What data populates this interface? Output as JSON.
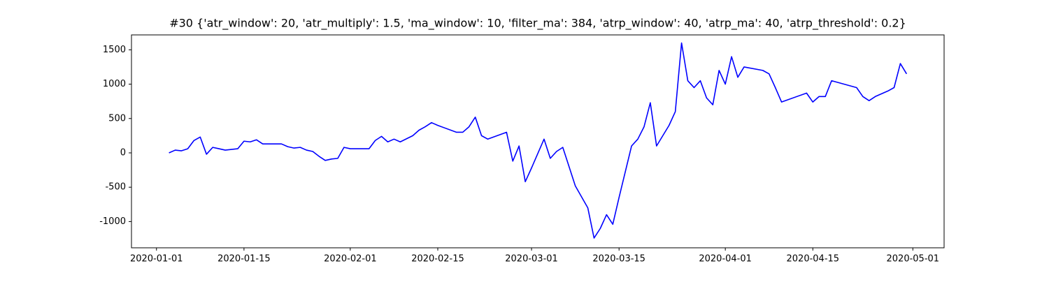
{
  "chart_data": {
    "type": "line",
    "title": "#30 {'atr_window': 20, 'atr_multiply': 1.5, 'ma_window': 10, 'filter_ma': 384, 'atrp_window': 40, 'atrp_ma': 40, 'atrp_threshold': 0.2}",
    "x": [
      "2020-01-03",
      "2020-01-04",
      "2020-01-05",
      "2020-01-06",
      "2020-01-07",
      "2020-01-08",
      "2020-01-09",
      "2020-01-10",
      "2020-01-11",
      "2020-01-12",
      "2020-01-14",
      "2020-01-15",
      "2020-01-16",
      "2020-01-17",
      "2020-01-18",
      "2020-01-21",
      "2020-01-22",
      "2020-01-23",
      "2020-01-24",
      "2020-01-25",
      "2020-01-26",
      "2020-01-27",
      "2020-01-28",
      "2020-01-29",
      "2020-01-30",
      "2020-01-31",
      "2020-02-01",
      "2020-02-04",
      "2020-02-05",
      "2020-02-06",
      "2020-02-07",
      "2020-02-08",
      "2020-02-09",
      "2020-02-11",
      "2020-02-12",
      "2020-02-13",
      "2020-02-14",
      "2020-02-15",
      "2020-02-18",
      "2020-02-19",
      "2020-02-20",
      "2020-02-21",
      "2020-02-22",
      "2020-02-23",
      "2020-02-26",
      "2020-02-27",
      "2020-02-28",
      "2020-02-29",
      "2020-03-01",
      "2020-03-03",
      "2020-03-04",
      "2020-03-05",
      "2020-03-06",
      "2020-03-07",
      "2020-03-08",
      "2020-03-10",
      "2020-03-11",
      "2020-03-12",
      "2020-03-13",
      "2020-03-14",
      "2020-03-15",
      "2020-03-17",
      "2020-03-18",
      "2020-03-19",
      "2020-03-20",
      "2020-03-21",
      "2020-03-22",
      "2020-03-23",
      "2020-03-24",
      "2020-03-25",
      "2020-03-26",
      "2020-03-27",
      "2020-03-28",
      "2020-03-29",
      "2020-03-30",
      "2020-03-31",
      "2020-04-01",
      "2020-04-02",
      "2020-04-03",
      "2020-04-04",
      "2020-04-07",
      "2020-04-08",
      "2020-04-09",
      "2020-04-10",
      "2020-04-14",
      "2020-04-15",
      "2020-04-16",
      "2020-04-17",
      "2020-04-18",
      "2020-04-22",
      "2020-04-23",
      "2020-04-24",
      "2020-04-25",
      "2020-04-27",
      "2020-04-28",
      "2020-04-29",
      "2020-04-30"
    ],
    "series": [
      {
        "color": "#0000ff",
        "values": [
          0,
          40,
          30,
          60,
          180,
          230,
          -20,
          80,
          60,
          40,
          60,
          170,
          160,
          190,
          130,
          130,
          90,
          70,
          80,
          40,
          20,
          -50,
          -110,
          -90,
          -80,
          80,
          60,
          60,
          180,
          240,
          160,
          200,
          160,
          250,
          330,
          380,
          440,
          400,
          300,
          300,
          380,
          520,
          250,
          200,
          300,
          -120,
          100,
          -420,
          -220,
          200,
          -80,
          20,
          80,
          -200,
          -480,
          -800,
          -1240,
          -1100,
          -900,
          -1040,
          -650,
          100,
          200,
          380,
          730,
          100,
          250,
          400,
          600,
          1600,
          1050,
          950,
          1050,
          800,
          700,
          1200,
          1000,
          1400,
          1100,
          1250,
          1200,
          1150,
          950,
          740,
          870,
          740,
          820,
          820,
          1050,
          950,
          820,
          760,
          820,
          900,
          950,
          1300,
          1150
        ]
      }
    ],
    "xlim": [
      "2019-12-28",
      "2020-05-06"
    ],
    "xticks": [
      "2020-01-01",
      "2020-01-15",
      "2020-02-01",
      "2020-02-15",
      "2020-03-01",
      "2020-03-15",
      "2020-04-01",
      "2020-04-15",
      "2020-05-01"
    ],
    "ylim": [
      -1382,
      1717
    ],
    "yticks": [
      -1000,
      -500,
      0,
      500,
      1000,
      1500
    ],
    "grid": false
  }
}
